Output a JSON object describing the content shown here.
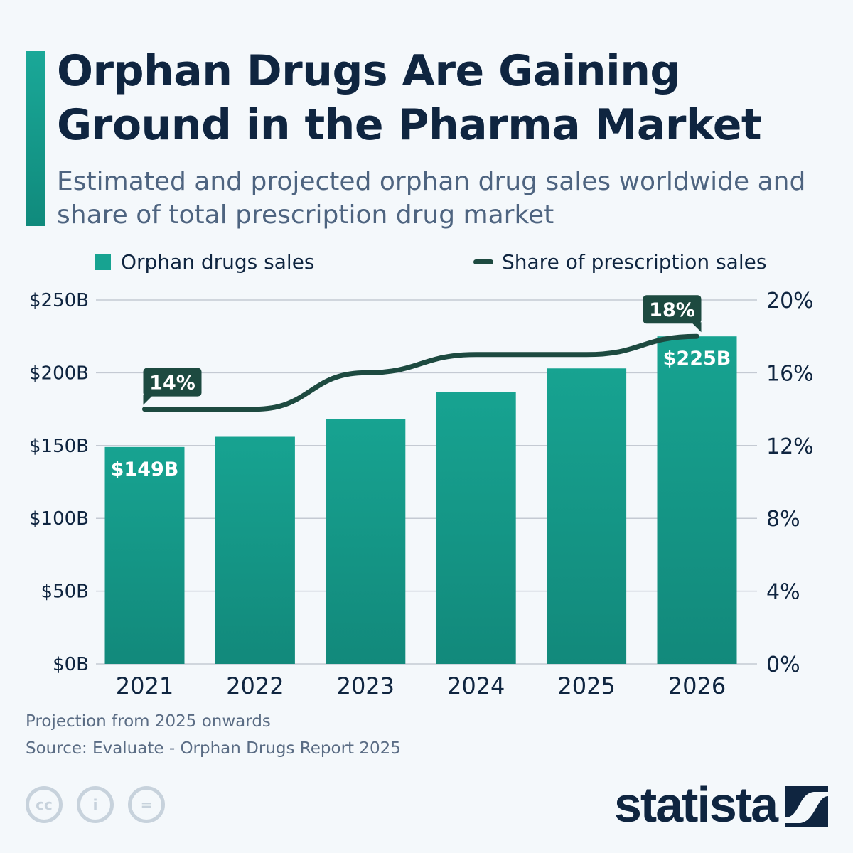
{
  "header": {
    "title": "Orphan Drugs Are Gaining Ground in the Pharma Market",
    "subtitle": "Estimated and projected orphan drug sales worldwide and share of total prescription drug market"
  },
  "colors": {
    "bar": "#17a391",
    "bar_bottom": "#12897b",
    "line": "#1d4a40",
    "title": "#0f2540",
    "grid": "#c4cad3"
  },
  "chart_data": {
    "type": "bar+line",
    "categories": [
      "2021",
      "2022",
      "2023",
      "2024",
      "2025",
      "2026"
    ],
    "series": [
      {
        "name": "Orphan drugs sales",
        "type": "bar",
        "axis": "left",
        "values": [
          149,
          156,
          168,
          187,
          203,
          225
        ]
      },
      {
        "name": "Share of prescription sales",
        "type": "line",
        "axis": "right",
        "values": [
          14,
          14,
          16,
          17,
          17,
          18
        ]
      }
    ],
    "left_axis": {
      "ylim": [
        0,
        250
      ],
      "ticks": [
        "$0B",
        "$50B",
        "$100B",
        "$150B",
        "$200B",
        "$250B"
      ]
    },
    "right_axis": {
      "ylim": [
        0,
        20
      ],
      "ticks": [
        "0%",
        "4%",
        "8%",
        "12%",
        "16%",
        "20%"
      ]
    },
    "data_labels": {
      "bars": [
        {
          "index": 0,
          "text": "$149B"
        },
        {
          "index": 5,
          "text": "$225B"
        }
      ],
      "line": [
        {
          "index": 0,
          "text": "14%"
        },
        {
          "index": 5,
          "text": "18%"
        }
      ]
    },
    "grid": true,
    "legend": "top"
  },
  "footer": {
    "note": "Projection from 2025 onwards",
    "source": "Source: Evaluate - Orphan Drugs Report 2025",
    "brand": "statista"
  },
  "icons": [
    "cc-icon",
    "attribution-icon",
    "no-derivatives-icon",
    "statista-logo-icon"
  ]
}
